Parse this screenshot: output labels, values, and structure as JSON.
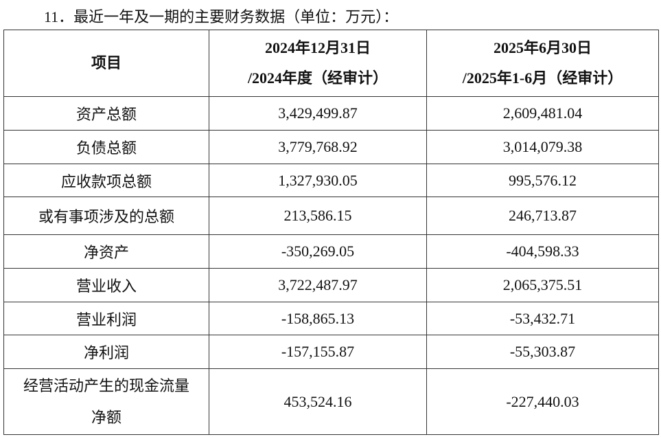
{
  "title": "11．最近一年及一期的主要财务数据（单位：万元）：",
  "table": {
    "headers": [
      {
        "line1": "项目",
        "line2": ""
      },
      {
        "line1": "2024年12月31日",
        "line2": "/2024年度（经审计）"
      },
      {
        "line1": "2025年6月30日",
        "line2": "/2025年1-6月（经审计）"
      }
    ],
    "rows": [
      {
        "item": "资产总额",
        "v2024": "3,429,499.87",
        "v2025": "2,609,481.04"
      },
      {
        "item": "负债总额",
        "v2024": "3,779,768.92",
        "v2025": "3,014,079.38"
      },
      {
        "item": "应收款项总额",
        "v2024": "1,327,930.05",
        "v2025": "995,576.12"
      },
      {
        "item": "或有事项涉及的总额",
        "v2024": "213,586.15",
        "v2025": "246,713.87"
      },
      {
        "item": "净资产",
        "v2024": "-350,269.05",
        "v2025": "-404,598.33"
      },
      {
        "item": "营业收入",
        "v2024": "3,722,487.97",
        "v2025": "2,065,375.51"
      },
      {
        "item": "营业利润",
        "v2024": "-158,865.13",
        "v2025": "-53,432.71"
      },
      {
        "item": "净利润",
        "v2024": "-157,155.87",
        "v2025": "-55,303.87"
      },
      {
        "item": "经营活动产生的现金流量净额",
        "v2024": "453,524.16",
        "v2025": "-227,440.03"
      }
    ]
  }
}
